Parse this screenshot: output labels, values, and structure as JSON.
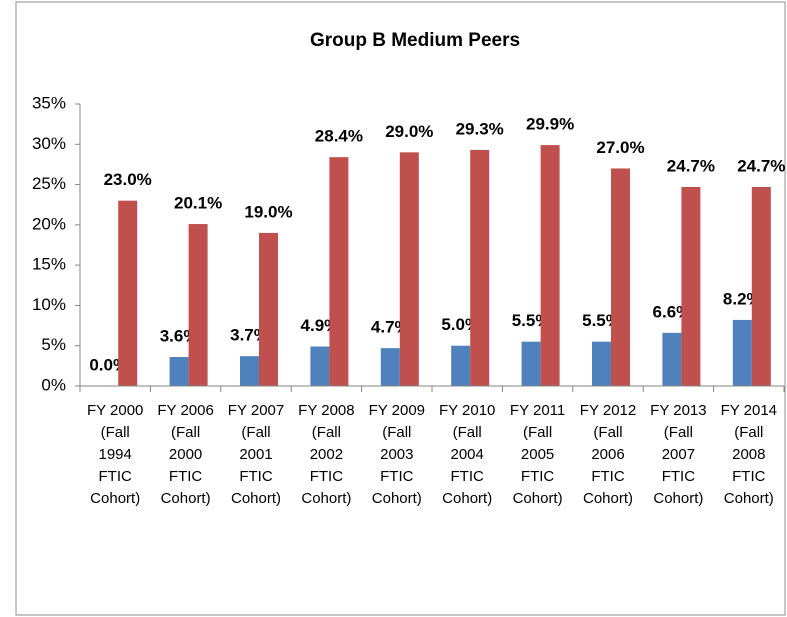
{
  "chart_data": {
    "type": "bar",
    "title": "Group B Medium Peers",
    "categories": [
      "FY 2000 (Fall 1994 FTIC Cohort)",
      "FY 2006 (Fall 2000 FTIC Cohort)",
      "FY 2007 (Fall 2001 FTIC Cohort)",
      "FY 2008 (Fall 2002 FTIC Cohort)",
      "FY 2009 (Fall 2003 FTIC Cohort)",
      "FY 2010 (Fall 2004 FTIC Cohort)",
      "FY 2011 (Fall 2005 FTIC Cohort)",
      "FY 2012 (Fall 2006 FTIC Cohort)",
      "FY 2013 (Fall 2007 FTIC Cohort)",
      "FY 2014 (Fall 2008 FTIC Cohort)"
    ],
    "series": [
      {
        "color": "#4f81bd",
        "values": [
          0.0,
          3.6,
          3.7,
          4.9,
          4.7,
          5.0,
          5.5,
          5.5,
          6.6,
          8.2
        ],
        "value_labels": [
          "0.0%",
          "3.6%",
          "3.7%",
          "4.9%",
          "4.7%",
          "5.0%",
          "5.5%",
          "5.5%",
          "6.6%",
          "8.2%"
        ]
      },
      {
        "color": "#c0504d",
        "values": [
          23.0,
          20.1,
          19.0,
          28.4,
          29.0,
          29.3,
          29.9,
          27.0,
          24.7,
          24.7
        ],
        "value_labels": [
          "23.0%",
          "20.1%",
          "19.0%",
          "28.4%",
          "29.0%",
          "29.3%",
          "29.9%",
          "27.0%",
          "24.7%",
          "24.7%"
        ]
      }
    ],
    "ylim": [
      0,
      35
    ],
    "yticks": [
      {
        "value": 0,
        "label": "0%"
      },
      {
        "value": 5,
        "label": "5%"
      },
      {
        "value": 10,
        "label": "10%"
      },
      {
        "value": 15,
        "label": "15%"
      },
      {
        "value": 20,
        "label": "20%"
      },
      {
        "value": 25,
        "label": "25%"
      },
      {
        "value": 30,
        "label": "30%"
      },
      {
        "value": 35,
        "label": "35%"
      }
    ]
  }
}
